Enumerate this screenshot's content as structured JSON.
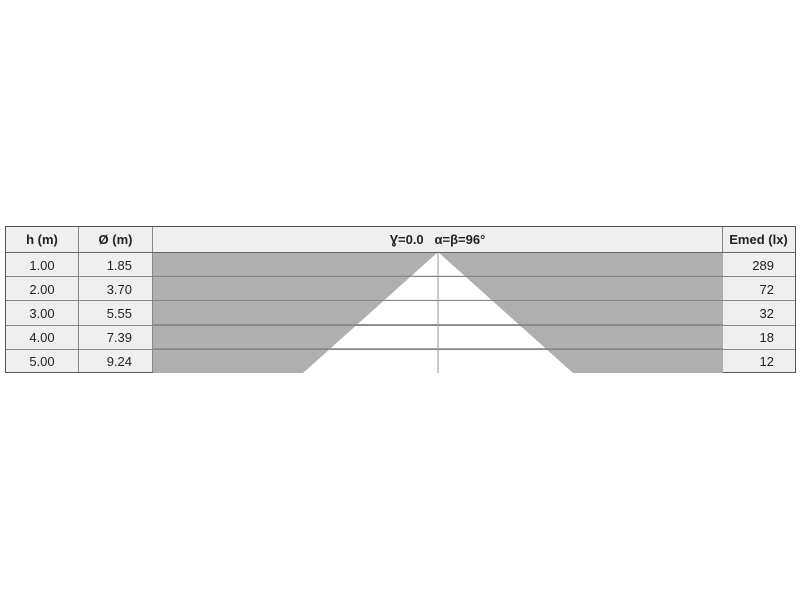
{
  "header": {
    "height_label": "h (m)",
    "diameter_label": "Ø (m)",
    "beam_label": "Ɣ=0.0   α=β=96°",
    "illuminance_label": "Emed (lx)"
  },
  "rows": [
    {
      "h": "1.00",
      "d": "1.85",
      "e": "289"
    },
    {
      "h": "2.00",
      "d": "3.70",
      "e": "72"
    },
    {
      "h": "3.00",
      "d": "5.55",
      "e": "32"
    },
    {
      "h": "4.00",
      "d": "7.39",
      "e": "18"
    },
    {
      "h": "5.00",
      "d": "9.24",
      "e": "12"
    }
  ],
  "beam_angle_deg": 96,
  "colors": {
    "shade": "#b0afaf",
    "cell_bg": "#efefef",
    "cone": "#ffffff",
    "border": "#555555"
  }
}
